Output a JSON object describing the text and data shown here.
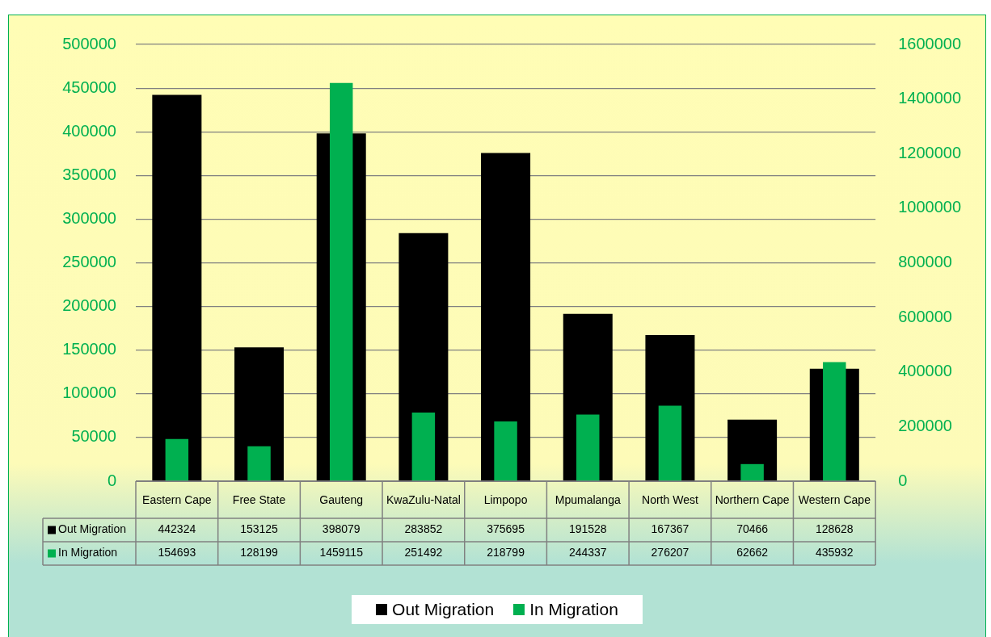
{
  "chart_data": {
    "type": "bar",
    "categories": [
      "Eastern Cape",
      "Free State",
      "Gauteng",
      "KwaZulu-Natal",
      "Limpopo",
      "Mpumalanga",
      "North West",
      "Northern Cape",
      "Western Cape"
    ],
    "series": [
      {
        "name": "Out Migration",
        "color": "#000000",
        "values": [
          442324,
          153125,
          398079,
          283852,
          375695,
          191528,
          167367,
          70466,
          128628
        ]
      },
      {
        "name": "In Migration",
        "color": "#00b050",
        "axis": "y2",
        "values": [
          154693,
          128199,
          1459115,
          251492,
          218799,
          244337,
          276207,
          62662,
          435932
        ]
      }
    ],
    "ylim": [
      0,
      500000
    ],
    "yticks": [
      0,
      50000,
      100000,
      150000,
      200000,
      250000,
      300000,
      350000,
      400000,
      450000,
      500000
    ],
    "y2lim": [
      0,
      1600000
    ],
    "y2ticks": [
      0,
      200000,
      400000,
      600000,
      800000,
      1000000,
      1200000,
      1400000,
      1600000
    ],
    "grid": "y",
    "legend": "bottom",
    "data_labels": true
  }
}
